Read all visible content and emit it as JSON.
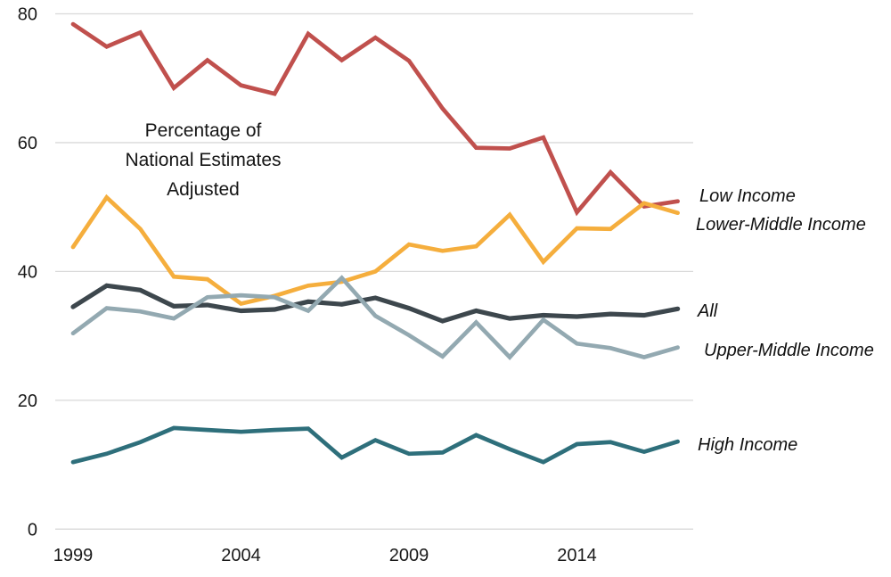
{
  "chart_data": {
    "type": "line",
    "annotation_lines": [
      "Percentage of",
      "National Estimates",
      "Adjusted"
    ],
    "x": [
      1999,
      2000,
      2001,
      2002,
      2003,
      2004,
      2005,
      2006,
      2007,
      2008,
      2009,
      2010,
      2011,
      2012,
      2013,
      2014,
      2015,
      2016,
      2017
    ],
    "x_ticks": [
      1999,
      2004,
      2009,
      2014
    ],
    "x_tick_labels": [
      "1999",
      "2004",
      "2009",
      "2014"
    ],
    "y_ticks": [
      0,
      20,
      40,
      60,
      80
    ],
    "y_tick_labels": [
      "0",
      "20",
      "40",
      "60",
      "80"
    ],
    "ylim": [
      0,
      80
    ],
    "grid": "horizontal-only",
    "legend_position": "right-of-line-ends",
    "colors": {
      "gridline": "#d9d9d9",
      "tick_text": "#1a1a1a",
      "annotation_text": "#161616"
    },
    "series": [
      {
        "name": "Low Income",
        "color": "#c0504d",
        "values": [
          78.4,
          74.9,
          77.1,
          68.5,
          72.8,
          68.9,
          67.6,
          76.9,
          72.8,
          76.3,
          72.7,
          65.3,
          59.2,
          59.1,
          60.8,
          49.2,
          55.4,
          50.1,
          50.9
        ]
      },
      {
        "name": "Lower-Middle Income",
        "color": "#f5ae3d",
        "values": [
          43.8,
          51.5,
          46.6,
          39.2,
          38.8,
          35.0,
          36.2,
          37.8,
          38.4,
          40.0,
          44.2,
          43.2,
          43.9,
          48.8,
          41.5,
          46.7,
          46.6,
          50.6,
          49.1
        ]
      },
      {
        "name": "All",
        "color": "#3d474d",
        "values": [
          34.5,
          37.8,
          37.1,
          34.6,
          34.8,
          33.9,
          34.1,
          35.3,
          34.9,
          35.9,
          34.3,
          32.3,
          33.9,
          32.7,
          33.2,
          33.0,
          33.4,
          33.2,
          34.2
        ]
      },
      {
        "name": "Upper-Middle Income",
        "color": "#93a9b1",
        "values": [
          30.4,
          34.3,
          33.8,
          32.7,
          36.0,
          36.3,
          36.0,
          33.9,
          39.0,
          33.1,
          30.1,
          26.8,
          32.1,
          26.7,
          32.5,
          28.8,
          28.1,
          26.7,
          28.2
        ]
      },
      {
        "name": "High Income",
        "color": "#2e6f7b",
        "values": [
          10.4,
          11.7,
          13.5,
          15.7,
          15.4,
          15.1,
          15.4,
          15.6,
          11.1,
          13.8,
          11.7,
          11.9,
          14.6,
          12.4,
          10.4,
          13.2,
          13.5,
          12.0,
          13.6
        ]
      }
    ]
  }
}
